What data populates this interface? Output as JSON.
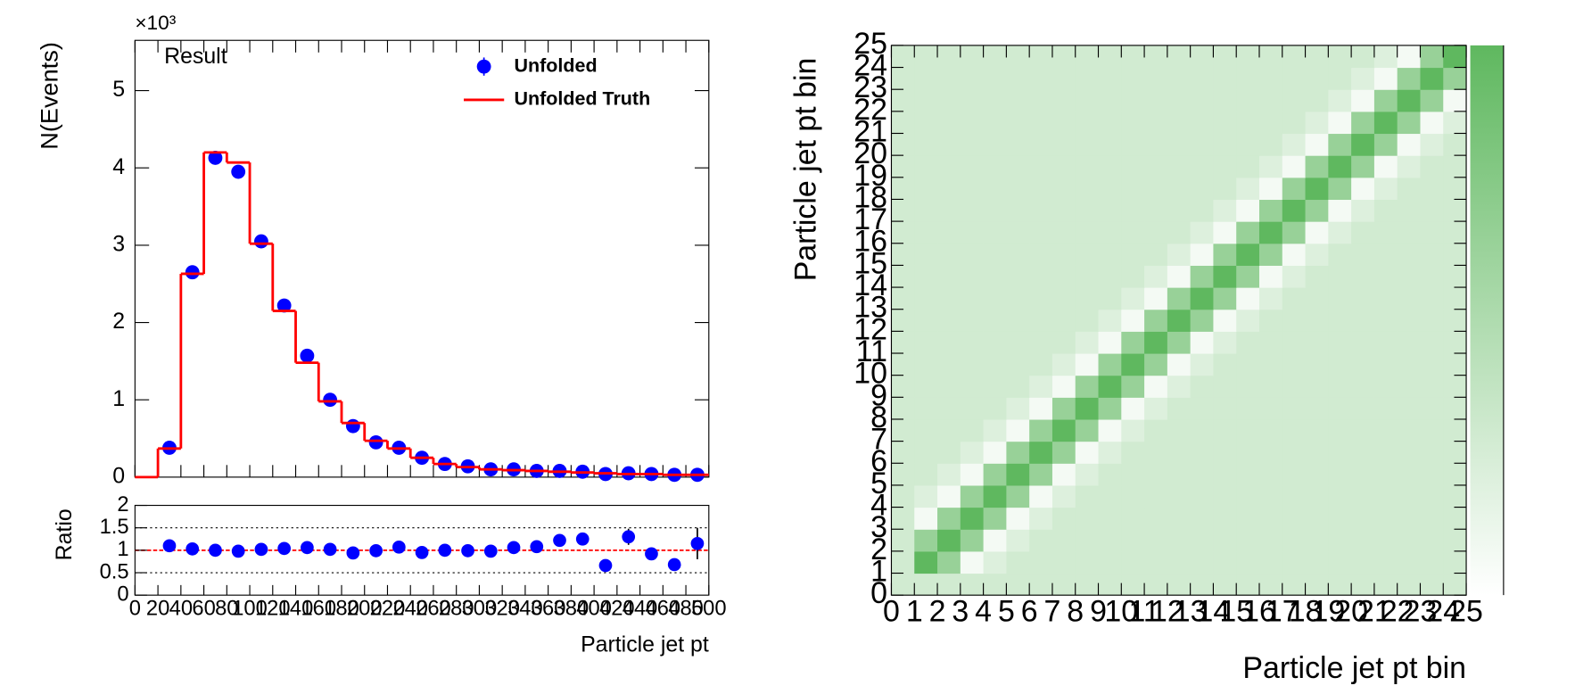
{
  "chart_data": [
    {
      "type": "histogram",
      "title": "Result",
      "y_label": "N(Events)",
      "y_exponent": "×10³",
      "legend": "upper right",
      "xlim": [
        0,
        500
      ],
      "xticks": [
        0,
        20,
        40,
        60,
        80,
        100,
        120,
        140,
        160,
        180,
        200,
        220,
        240,
        260,
        280,
        300,
        320,
        340,
        360,
        380,
        400,
        420,
        440,
        460,
        480,
        500
      ],
      "ylim": [
        0,
        5.65
      ],
      "yticks": [
        0,
        1,
        2,
        3,
        4,
        5
      ],
      "series": [
        {
          "name": "Unfolded",
          "color": "#0000ff",
          "kind": "points",
          "x": [
            30,
            50,
            70,
            90,
            110,
            130,
            150,
            170,
            190,
            210,
            230,
            250,
            270,
            290,
            310,
            330,
            350,
            370,
            390,
            410,
            430,
            450,
            470,
            490
          ],
          "values": [
            0.38,
            2.65,
            4.13,
            3.95,
            3.05,
            2.22,
            1.57,
            1.0,
            0.66,
            0.45,
            0.38,
            0.25,
            0.17,
            0.14,
            0.1,
            0.1,
            0.08,
            0.08,
            0.07,
            0.04,
            0.05,
            0.04,
            0.03,
            0.03
          ]
        },
        {
          "name": "Unfolded Truth",
          "color": "#ff0000",
          "kind": "step",
          "bins": [
            0,
            20,
            40,
            60,
            80,
            100,
            120,
            140,
            160,
            180,
            200,
            220,
            240,
            260,
            280,
            300,
            320,
            340,
            360,
            380,
            400,
            420,
            440,
            460,
            480,
            500
          ],
          "values": [
            0,
            0.37,
            2.63,
            4.2,
            4.07,
            3.02,
            2.15,
            1.48,
            0.98,
            0.7,
            0.47,
            0.37,
            0.25,
            0.17,
            0.13,
            0.1,
            0.09,
            0.08,
            0.07,
            0.06,
            0.05,
            0.04,
            0.04,
            0.03,
            0.03
          ]
        }
      ]
    },
    {
      "type": "scatter",
      "y_label": "Ratio",
      "x_label": "Particle jet pt",
      "color": "#0000ff",
      "xlim": [
        0,
        500
      ],
      "xticks": [
        0,
        20,
        40,
        60,
        80,
        100,
        120,
        140,
        160,
        180,
        200,
        220,
        240,
        260,
        280,
        300,
        320,
        340,
        360,
        380,
        400,
        420,
        440,
        460,
        480,
        500
      ],
      "ylim": [
        0,
        2
      ],
      "yticks": [
        0,
        0.5,
        1,
        1.5,
        2
      ],
      "reference_line": 1,
      "reference_color": "#ff0000",
      "dotted_lines": [
        0.5,
        1.5
      ],
      "x": [
        30,
        50,
        70,
        90,
        110,
        130,
        150,
        170,
        190,
        210,
        230,
        250,
        270,
        290,
        310,
        330,
        350,
        370,
        390,
        410,
        430,
        450,
        470,
        490
      ],
      "values": [
        1.1,
        1.03,
        1.0,
        0.98,
        1.02,
        1.04,
        1.06,
        1.02,
        0.94,
        0.99,
        1.07,
        0.95,
        1.0,
        0.99,
        0.98,
        1.06,
        1.08,
        1.22,
        1.25,
        0.66,
        1.3,
        0.92,
        0.68,
        1.15
      ],
      "errors": [
        0.03,
        0.03,
        0.02,
        0.02,
        0.03,
        0.03,
        0.04,
        0.04,
        0.04,
        0.05,
        0.05,
        0.05,
        0.06,
        0.06,
        0.06,
        0.07,
        0.08,
        0.1,
        0.1,
        0.06,
        0.18,
        0.13,
        0.12,
        0.35
      ]
    },
    {
      "type": "heatmap",
      "x_label": "Particle jet pt bin",
      "y_label": "Particle jet pt bin",
      "xlim": [
        0,
        25
      ],
      "ylim": [
        0,
        25
      ],
      "xticks": [
        0,
        1,
        2,
        3,
        4,
        5,
        6,
        7,
        8,
        9,
        10,
        11,
        12,
        13,
        14,
        15,
        16,
        17,
        18,
        19,
        20,
        21,
        22,
        23,
        24,
        25
      ],
      "yticks": [
        0,
        1,
        2,
        3,
        4,
        5,
        6,
        7,
        8,
        9,
        10,
        11,
        12,
        13,
        14,
        15,
        16,
        17,
        18,
        19,
        20,
        21,
        22,
        23,
        24,
        25
      ],
      "zlim": [
        -0.4,
        1
      ],
      "colors": [
        "#ffffff",
        "#5fb85f"
      ],
      "z": [
        [
          0,
          0,
          0,
          0,
          0,
          0,
          0,
          0,
          0,
          0,
          0,
          0,
          0,
          0,
          0,
          0,
          0,
          0,
          0,
          0,
          0,
          0,
          0,
          0,
          0
        ],
        [
          0,
          1,
          0.5,
          -0.3,
          -0.1,
          0,
          0,
          0,
          0,
          0,
          0,
          0,
          0,
          0,
          0,
          0,
          0,
          0,
          0,
          0,
          0,
          0,
          0,
          0,
          0
        ],
        [
          0,
          0.5,
          1,
          0.5,
          -0.3,
          -0.1,
          0,
          0,
          0,
          0,
          0,
          0,
          0,
          0,
          0,
          0,
          0,
          0,
          0,
          0,
          0,
          0,
          0,
          0,
          0
        ],
        [
          0,
          -0.3,
          0.5,
          1,
          0.5,
          -0.3,
          -0.1,
          0,
          0,
          0,
          0,
          0,
          0,
          0,
          0,
          0,
          0,
          0,
          0,
          0,
          0,
          0,
          0,
          0,
          0
        ],
        [
          0,
          -0.1,
          -0.3,
          0.5,
          1,
          0.5,
          -0.3,
          -0.1,
          0,
          0,
          0,
          0,
          0,
          0,
          0,
          0,
          0,
          0,
          0,
          0,
          0,
          0,
          0,
          0,
          0
        ],
        [
          0,
          0,
          -0.1,
          -0.3,
          0.5,
          1,
          0.5,
          -0.3,
          -0.1,
          0,
          0,
          0,
          0,
          0,
          0,
          0,
          0,
          0,
          0,
          0,
          0,
          0,
          0,
          0,
          0
        ],
        [
          0,
          0,
          0,
          -0.1,
          -0.3,
          0.5,
          1,
          0.5,
          -0.3,
          -0.1,
          0,
          0,
          0,
          0,
          0,
          0,
          0,
          0,
          0,
          0,
          0,
          0,
          0,
          0,
          0
        ],
        [
          0,
          0,
          0,
          0,
          -0.1,
          -0.3,
          0.5,
          1,
          0.5,
          -0.3,
          -0.1,
          0,
          0,
          0,
          0,
          0,
          0,
          0,
          0,
          0,
          0,
          0,
          0,
          0,
          0
        ],
        [
          0,
          0,
          0,
          0,
          0,
          -0.1,
          -0.3,
          0.5,
          1,
          0.5,
          -0.3,
          -0.1,
          0,
          0,
          0,
          0,
          0,
          0,
          0,
          0,
          0,
          0,
          0,
          0,
          0
        ],
        [
          0,
          0,
          0,
          0,
          0,
          0,
          -0.1,
          -0.3,
          0.5,
          1,
          0.5,
          -0.3,
          -0.1,
          0,
          0,
          0,
          0,
          0,
          0,
          0,
          0,
          0,
          0,
          0,
          0
        ],
        [
          0,
          0,
          0,
          0,
          0,
          0,
          0,
          -0.1,
          -0.3,
          0.5,
          1,
          0.5,
          -0.3,
          -0.1,
          0,
          0,
          0,
          0,
          0,
          0,
          0,
          0,
          0,
          0,
          0
        ],
        [
          0,
          0,
          0,
          0,
          0,
          0,
          0,
          0,
          -0.1,
          -0.3,
          0.5,
          1,
          0.5,
          -0.3,
          -0.1,
          0,
          0,
          0,
          0,
          0,
          0,
          0,
          0,
          0,
          0
        ],
        [
          0,
          0,
          0,
          0,
          0,
          0,
          0,
          0,
          0,
          -0.1,
          -0.3,
          0.5,
          1,
          0.5,
          -0.3,
          -0.1,
          0,
          0,
          0,
          0,
          0,
          0,
          0,
          0,
          0
        ],
        [
          0,
          0,
          0,
          0,
          0,
          0,
          0,
          0,
          0,
          0,
          -0.1,
          -0.3,
          0.5,
          1,
          0.5,
          -0.3,
          -0.1,
          0,
          0,
          0,
          0,
          0,
          0,
          0,
          0
        ],
        [
          0,
          0,
          0,
          0,
          0,
          0,
          0,
          0,
          0,
          0,
          0,
          -0.1,
          -0.3,
          0.5,
          1,
          0.5,
          -0.3,
          -0.1,
          0,
          0,
          0,
          0,
          0,
          0,
          0
        ],
        [
          0,
          0,
          0,
          0,
          0,
          0,
          0,
          0,
          0,
          0,
          0,
          0,
          -0.1,
          -0.3,
          0.5,
          1,
          0.5,
          -0.3,
          -0.1,
          0,
          0,
          0,
          0,
          0,
          0
        ],
        [
          0,
          0,
          0,
          0,
          0,
          0,
          0,
          0,
          0,
          0,
          0,
          0,
          0,
          -0.1,
          -0.3,
          0.5,
          1,
          0.5,
          -0.3,
          -0.1,
          0,
          0,
          0,
          0,
          0
        ],
        [
          0,
          0,
          0,
          0,
          0,
          0,
          0,
          0,
          0,
          0,
          0,
          0,
          0,
          0,
          -0.1,
          -0.3,
          0.5,
          1,
          0.5,
          -0.3,
          -0.1,
          0,
          0,
          0,
          0
        ],
        [
          0,
          0,
          0,
          0,
          0,
          0,
          0,
          0,
          0,
          0,
          0,
          0,
          0,
          0,
          0,
          -0.1,
          -0.3,
          0.5,
          1,
          0.5,
          -0.3,
          -0.1,
          0,
          0,
          0
        ],
        [
          0,
          0,
          0,
          0,
          0,
          0,
          0,
          0,
          0,
          0,
          0,
          0,
          0,
          0,
          0,
          0,
          -0.1,
          -0.3,
          0.5,
          1,
          0.5,
          -0.3,
          -0.1,
          0,
          0
        ],
        [
          0,
          0,
          0,
          0,
          0,
          0,
          0,
          0,
          0,
          0,
          0,
          0,
          0,
          0,
          0,
          0,
          0,
          -0.1,
          -0.3,
          0.5,
          1,
          0.5,
          -0.3,
          -0.1,
          0
        ],
        [
          0,
          0,
          0,
          0,
          0,
          0,
          0,
          0,
          0,
          0,
          0,
          0,
          0,
          0,
          0,
          0,
          0,
          0,
          -0.1,
          -0.3,
          0.5,
          1,
          0.5,
          -0.3,
          -0.1
        ],
        [
          0,
          0,
          0,
          0,
          0,
          0,
          0,
          0,
          0,
          0,
          0,
          0,
          0,
          0,
          0,
          0,
          0,
          0,
          0,
          -0.1,
          -0.3,
          0.5,
          1,
          0.5,
          -0.3
        ],
        [
          0,
          0,
          0,
          0,
          0,
          0,
          0,
          0,
          0,
          0,
          0,
          0,
          0,
          0,
          0,
          0,
          0,
          0,
          0,
          0,
          -0.1,
          -0.3,
          0.5,
          1,
          0.5
        ],
        [
          0,
          0,
          0,
          0,
          0,
          0,
          0,
          0,
          0,
          0,
          0,
          0,
          0,
          0,
          0,
          0,
          0,
          0,
          0,
          0,
          0,
          -0.1,
          -0.3,
          0.5,
          1
        ]
      ]
    }
  ]
}
